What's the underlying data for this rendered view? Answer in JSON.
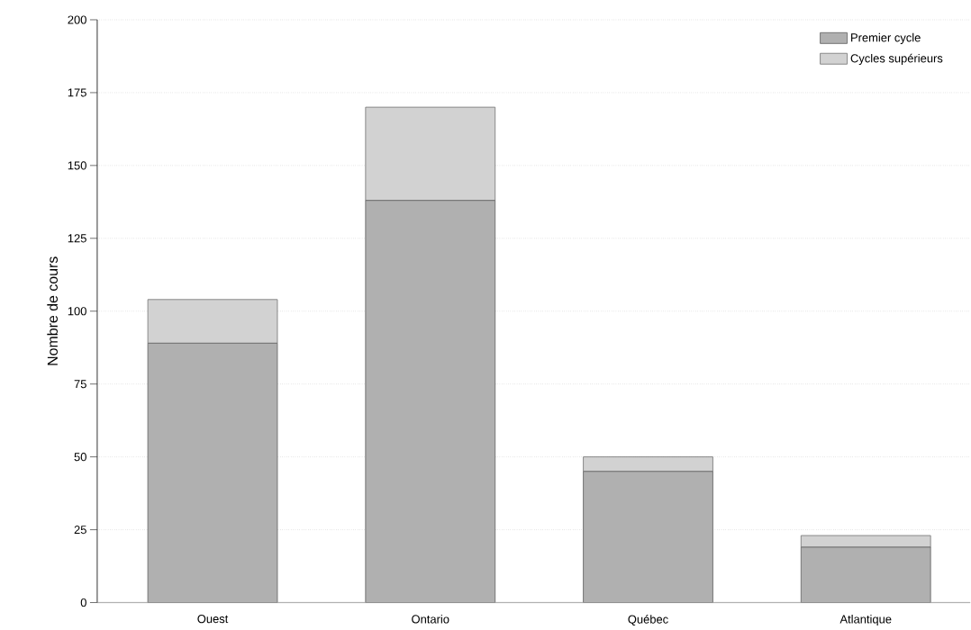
{
  "chart_data": {
    "type": "bar",
    "stacked": true,
    "ylabel": "Nombre de cours",
    "categories": [
      "Ouest",
      "Ontario",
      "Québec",
      "Atlantique"
    ],
    "series": [
      {
        "name": "Premier cycle",
        "color": "#b0b0b0",
        "values": [
          89,
          138,
          45,
          19
        ]
      },
      {
        "name": "Cycles supérieurs",
        "color": "#d2d2d2",
        "values": [
          15,
          32,
          5,
          4
        ]
      }
    ],
    "ylim": [
      0,
      200
    ],
    "yticks": [
      0,
      25,
      50,
      75,
      100,
      125,
      150,
      175,
      200
    ],
    "grid": "y",
    "legend": "top right"
  }
}
